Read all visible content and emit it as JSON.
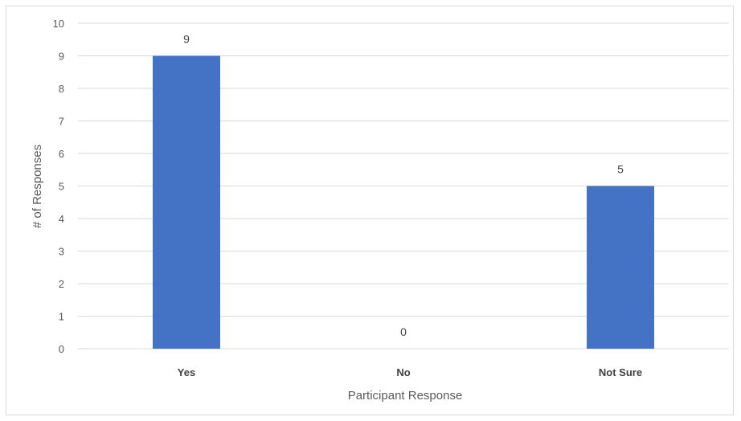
{
  "chart_data": {
    "type": "bar",
    "categories": [
      "Yes",
      "No",
      "Not Sure"
    ],
    "values": [
      9,
      0,
      5
    ],
    "data_labels": [
      "9",
      "0",
      "5"
    ],
    "title": "",
    "xlabel": "Participant Response",
    "ylabel": "# of Responses",
    "ylim": [
      0,
      10
    ],
    "yticks": [
      0,
      1,
      2,
      3,
      4,
      5,
      6,
      7,
      8,
      9,
      10
    ],
    "grid": true,
    "legend": "none",
    "bar_color": "#4472c4",
    "gridline_color": "#d9d9d9"
  }
}
